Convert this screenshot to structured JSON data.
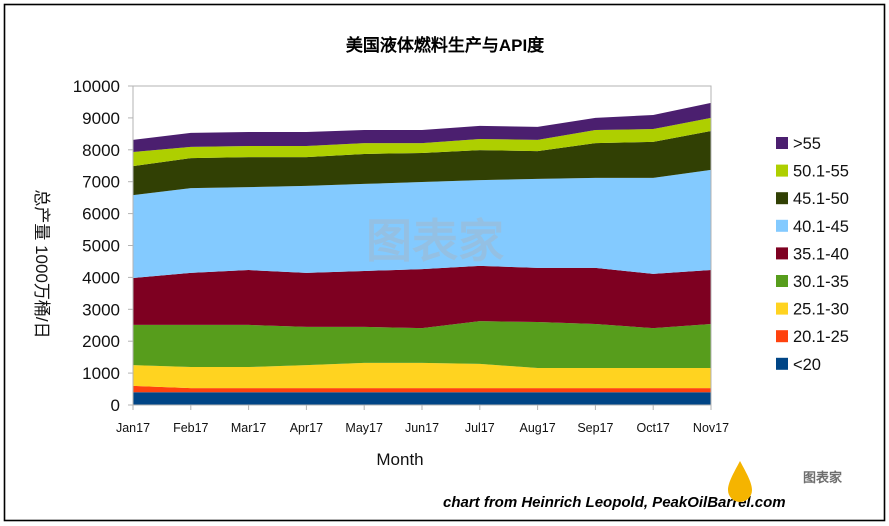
{
  "chart_data": {
    "type": "area",
    "stacked": true,
    "title": "美国液体燃料生产与API度",
    "xlabel": "Month",
    "ylabel": "总产量 1000万桶/日",
    "categories": [
      "Jan17",
      "Feb17",
      "Mar17",
      "Apr17",
      "May17",
      "Jun17",
      "Jul17",
      "Aug17",
      "Sep17",
      "Oct17",
      "Nov17"
    ],
    "y_ticks": [
      0,
      1000,
      2000,
      3000,
      4000,
      5000,
      6000,
      7000,
      8000,
      9000,
      10000
    ],
    "ylim": [
      0,
      10000
    ],
    "grid": false,
    "legend_position": "right",
    "series": [
      {
        "name": "<20",
        "color": "#004586",
        "values": [
          400,
          400,
          400,
          400,
          400,
          400,
          400,
          400,
          400,
          400,
          400
        ]
      },
      {
        "name": "20.1-25",
        "color": "#ff420e",
        "values": [
          200,
          130,
          130,
          130,
          130,
          130,
          130,
          130,
          130,
          130,
          130
        ]
      },
      {
        "name": "25.1-30",
        "color": "#ffd320",
        "values": [
          650,
          660,
          660,
          720,
          790,
          790,
          760,
          630,
          630,
          630,
          630
        ]
      },
      {
        "name": "30.1-35",
        "color": "#579d1c",
        "values": [
          1260,
          1320,
          1320,
          1200,
          1130,
          1090,
          1340,
          1440,
          1380,
          1250,
          1380
        ]
      },
      {
        "name": "35.1-40",
        "color": "#7e0021",
        "values": [
          1470,
          1630,
          1720,
          1690,
          1750,
          1850,
          1730,
          1700,
          1760,
          1700,
          1690
        ]
      },
      {
        "name": "40.1-45",
        "color": "#83caff",
        "values": [
          2600,
          2660,
          2600,
          2730,
          2730,
          2730,
          2690,
          2790,
          2820,
          3010,
          3140
        ]
      },
      {
        "name": "45.1-50",
        "color": "#314004",
        "values": [
          910,
          940,
          940,
          900,
          940,
          910,
          940,
          870,
          1090,
          1130,
          1220
        ]
      },
      {
        "name": "50.1-55",
        "color": "#aecf00",
        "values": [
          440,
          350,
          350,
          350,
          340,
          310,
          350,
          350,
          410,
          400,
          410
        ]
      },
      {
        "name": ">55",
        "color": "#4b1f6f",
        "values": [
          380,
          440,
          440,
          440,
          410,
          410,
          410,
          410,
          380,
          440,
          470
        ]
      }
    ]
  },
  "footer": {
    "credit": "chart from Heinrich Leopold, PeakOilBarrel.com"
  },
  "watermark": {
    "center_text": "图表家",
    "corner_text": "图表家",
    "drop_color": "#f5b400"
  }
}
